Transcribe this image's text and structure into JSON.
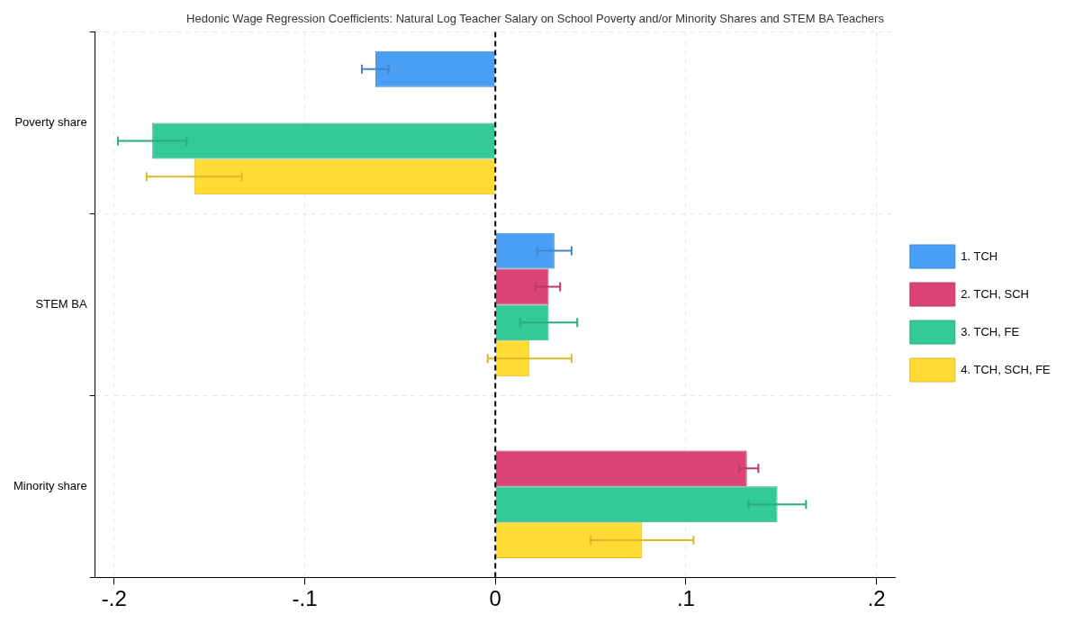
{
  "chart_data": {
    "type": "bar",
    "orientation": "horizontal",
    "title": "Hedonic Wage Regression Coefficients: Natural Log Teacher Salary on School Poverty and/or Minority Shares and STEM BA Teachers",
    "categories": [
      "Poverty share",
      "STEM BA",
      "Minority share"
    ],
    "series": [
      {
        "name": "1. TCH",
        "color": "#4a9ff5",
        "values": [
          -0.063,
          0.031,
          null
        ],
        "errors": [
          [
            -0.07,
            -0.056
          ],
          [
            0.022,
            0.04
          ],
          null
        ]
      },
      {
        "name": "2. TCH, SCH",
        "color": "#dc4377",
        "values": [
          null,
          0.028,
          0.132
        ],
        "errors": [
          null,
          [
            0.021,
            0.034
          ],
          [
            0.128,
            0.138
          ]
        ]
      },
      {
        "name": "3. TCH, FE",
        "color": "#33c999",
        "values": [
          -0.18,
          0.028,
          0.148
        ],
        "errors": [
          [
            -0.198,
            -0.162
          ],
          [
            0.013,
            0.043
          ],
          [
            0.133,
            0.163
          ]
        ]
      },
      {
        "name": "4. TCH, SCH, FE",
        "color": "#ffdb33",
        "values": [
          -0.158,
          0.018,
          0.077
        ],
        "errors": [
          [
            -0.183,
            -0.133
          ],
          [
            -0.004,
            0.04
          ],
          [
            0.05,
            0.104
          ]
        ]
      }
    ],
    "xlim": [
      -0.21,
      0.21
    ],
    "xticks": [
      {
        "value": -0.2,
        "label": "-.2"
      },
      {
        "value": -0.1,
        "label": "-.1"
      },
      0,
      {
        "value": 0.1,
        "label": ".1"
      },
      {
        "value": 0.2,
        "label": ".2"
      }
    ],
    "ref_lines": [
      {
        "axis": "x",
        "value": 0,
        "color": "#000000",
        "line_style": "dashed"
      }
    ],
    "grid": true,
    "legend": "right"
  }
}
